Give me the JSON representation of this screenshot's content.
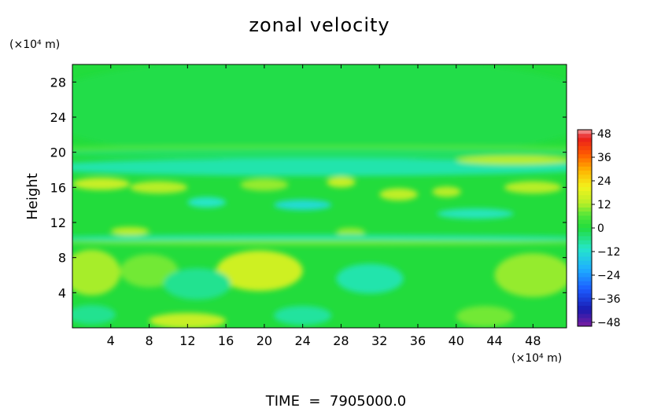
{
  "chart_data": {
    "type": "heatmap",
    "title": "zonal velocity",
    "xlabel": "",
    "ylabel": "Height",
    "x_unit": "(×10⁴ m)",
    "y_unit": "(×10⁴ m)",
    "xlim": [
      0,
      51.5
    ],
    "ylim": [
      0,
      30
    ],
    "x_ticks": [
      "4",
      "8",
      "12",
      "16",
      "20",
      "24",
      "28",
      "32",
      "36",
      "40",
      "44",
      "48"
    ],
    "y_ticks": [
      "4",
      "8",
      "12",
      "16",
      "20",
      "24",
      "28"
    ],
    "colorbar": {
      "range": [
        -48,
        48
      ],
      "tick_labels": [
        "48",
        "36",
        "24",
        "12",
        "0",
        "−12",
        "−24",
        "−36",
        "−48"
      ],
      "stops": [
        {
          "v": -48,
          "color": "#7a1fa0"
        },
        {
          "v": -40,
          "color": "#1a1ab0"
        },
        {
          "v": -30,
          "color": "#1c5cff"
        },
        {
          "v": -20,
          "color": "#1eb0ff"
        },
        {
          "v": -10,
          "color": "#25e6c8"
        },
        {
          "v": 0,
          "color": "#22dc3c"
        },
        {
          "v": 6,
          "color": "#4fe63a"
        },
        {
          "v": 12,
          "color": "#b8ee28"
        },
        {
          "v": 20,
          "color": "#f2f21c"
        },
        {
          "v": 28,
          "color": "#ffb400"
        },
        {
          "v": 36,
          "color": "#ff5a00"
        },
        {
          "v": 44,
          "color": "#e81c1c"
        },
        {
          "v": 48,
          "color": "#f4a0a0"
        }
      ]
    },
    "background_value": 0,
    "features": [
      {
        "x": 25.75,
        "y": 25,
        "rx": 30,
        "ry": 6,
        "v": -1
      },
      {
        "x": 25.75,
        "y": 20.4,
        "rx": 30,
        "ry": 0.4,
        "v": 6
      },
      {
        "x": 25.75,
        "y": 19.9,
        "rx": 30,
        "ry": 0.5,
        "v": -3
      },
      {
        "x": 25.75,
        "y": 18.3,
        "rx": 30,
        "ry": 1.0,
        "v": -8
      },
      {
        "x": 46,
        "y": 19.1,
        "rx": 6,
        "ry": 0.5,
        "v": 12
      },
      {
        "x": 3,
        "y": 16.4,
        "rx": 3,
        "ry": 0.7,
        "v": 14
      },
      {
        "x": 9,
        "y": 16.0,
        "rx": 3,
        "ry": 0.7,
        "v": 12
      },
      {
        "x": 20,
        "y": 16.3,
        "rx": 2.5,
        "ry": 0.7,
        "v": 10
      },
      {
        "x": 28,
        "y": 16.6,
        "rx": 1.5,
        "ry": 0.6,
        "v": 14
      },
      {
        "x": 34,
        "y": 15.2,
        "rx": 2,
        "ry": 0.7,
        "v": 13
      },
      {
        "x": 39,
        "y": 15.5,
        "rx": 1.5,
        "ry": 0.6,
        "v": 12
      },
      {
        "x": 48,
        "y": 16.0,
        "rx": 3,
        "ry": 0.7,
        "v": 12
      },
      {
        "x": 14,
        "y": 14.3,
        "rx": 2,
        "ry": 0.6,
        "v": -10
      },
      {
        "x": 24,
        "y": 14.0,
        "rx": 3,
        "ry": 0.6,
        "v": -12
      },
      {
        "x": 42,
        "y": 13.0,
        "rx": 4,
        "ry": 0.6,
        "v": -9
      },
      {
        "x": 6,
        "y": 11.0,
        "rx": 2,
        "ry": 0.5,
        "v": 12
      },
      {
        "x": 29,
        "y": 10.9,
        "rx": 1.5,
        "ry": 0.5,
        "v": 10
      },
      {
        "x": 25.75,
        "y": 10.2,
        "rx": 30,
        "ry": 0.4,
        "v": -8
      },
      {
        "x": 25.75,
        "y": 9.7,
        "rx": 30,
        "ry": 0.3,
        "v": 8
      },
      {
        "x": 2,
        "y": 6.3,
        "rx": 3,
        "ry": 2.6,
        "v": 11
      },
      {
        "x": 8,
        "y": 6.5,
        "rx": 3,
        "ry": 1.9,
        "v": 8
      },
      {
        "x": 19.5,
        "y": 6.5,
        "rx": 4.5,
        "ry": 2.3,
        "v": 15
      },
      {
        "x": 31,
        "y": 5.6,
        "rx": 3.5,
        "ry": 1.7,
        "v": -8
      },
      {
        "x": 13,
        "y": 5.0,
        "rx": 3.5,
        "ry": 1.8,
        "v": -6
      },
      {
        "x": 48,
        "y": 6.0,
        "rx": 4,
        "ry": 2.5,
        "v": 10
      },
      {
        "x": 12,
        "y": 0.8,
        "rx": 4,
        "ry": 0.9,
        "v": 14
      },
      {
        "x": 24,
        "y": 1.4,
        "rx": 3,
        "ry": 1.1,
        "v": -7
      },
      {
        "x": 43,
        "y": 1.3,
        "rx": 3,
        "ry": 1.2,
        "v": 8
      },
      {
        "x": 2,
        "y": 1.5,
        "rx": 2.5,
        "ry": 1.1,
        "v": -6
      }
    ]
  },
  "footer": {
    "time_text": "TIME  =  7905000.0"
  }
}
